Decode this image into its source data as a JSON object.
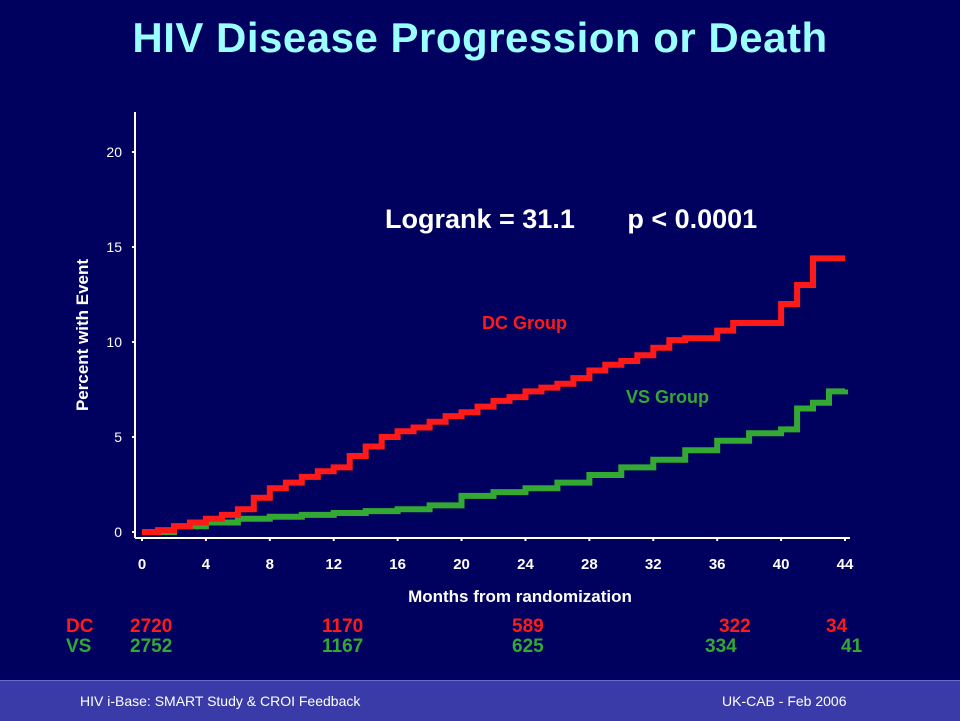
{
  "slide": {
    "title": "HIV Disease Progression or Death",
    "footer_left": "HIV i-Base: SMART Study & CROI Feedback",
    "footer_right": "UK-CAB - Feb 2006"
  },
  "colors": {
    "background": "#00005e",
    "title": "#99ffff",
    "dc": "#ff1a1a",
    "vs": "#33a832",
    "footer_bar": "#3a3aa8"
  },
  "chart_data": {
    "type": "line",
    "step": true,
    "xlabel": "Months from randomization",
    "ylabel": "Percent with Event",
    "xlim": [
      0,
      44
    ],
    "ylim": [
      0,
      22
    ],
    "xticks": [
      0,
      4,
      8,
      12,
      16,
      20,
      24,
      28,
      32,
      36,
      40,
      44
    ],
    "yticks": [
      0,
      5,
      10,
      15,
      20
    ],
    "annotation": "Logrank = 31.1       p < 0.0001",
    "series": [
      {
        "name": "DC Group",
        "color": "#ff1a1a",
        "x": [
          0,
          1,
          2,
          3,
          4,
          5,
          6,
          7,
          8,
          9,
          10,
          11,
          12,
          13,
          14,
          15,
          16,
          17,
          18,
          19,
          20,
          21,
          22,
          23,
          24,
          25,
          26,
          27,
          28,
          29,
          30,
          31,
          32,
          33,
          34,
          35,
          36,
          37,
          38,
          39,
          40,
          41,
          42,
          43,
          44
        ],
        "y": [
          0,
          0.1,
          0.3,
          0.5,
          0.7,
          0.9,
          1.2,
          1.8,
          2.3,
          2.6,
          2.9,
          3.2,
          3.4,
          4.0,
          4.5,
          5.0,
          5.3,
          5.5,
          5.8,
          6.1,
          6.3,
          6.6,
          6.9,
          7.1,
          7.4,
          7.6,
          7.8,
          8.1,
          8.5,
          8.8,
          9.0,
          9.3,
          9.7,
          10.1,
          10.2,
          10.2,
          10.6,
          11.0,
          11.0,
          11.0,
          12.0,
          13.0,
          14.4,
          14.4,
          14.4
        ]
      },
      {
        "name": "VS Group",
        "color": "#33a832",
        "x": [
          0,
          2,
          4,
          6,
          8,
          10,
          12,
          14,
          16,
          18,
          20,
          22,
          24,
          26,
          28,
          30,
          32,
          34,
          36,
          38,
          40,
          41,
          42,
          43,
          44
        ],
        "y": [
          0,
          0.3,
          0.5,
          0.7,
          0.8,
          0.9,
          1.0,
          1.1,
          1.2,
          1.4,
          1.9,
          2.1,
          2.3,
          2.6,
          3.0,
          3.4,
          3.8,
          4.3,
          4.8,
          5.2,
          5.4,
          6.5,
          6.8,
          7.4,
          7.5
        ]
      }
    ],
    "number_at_risk": {
      "timepoints": [
        0,
        12,
        24,
        36,
        44
      ],
      "rows": [
        {
          "label": "DC",
          "color": "#ff1a1a",
          "values": [
            "2720",
            "1170",
            "589",
            "322",
            "34"
          ]
        },
        {
          "label": "VS",
          "color": "#33a832",
          "values": [
            "2752",
            "1167",
            "625",
            "334",
            "41"
          ]
        }
      ]
    }
  }
}
